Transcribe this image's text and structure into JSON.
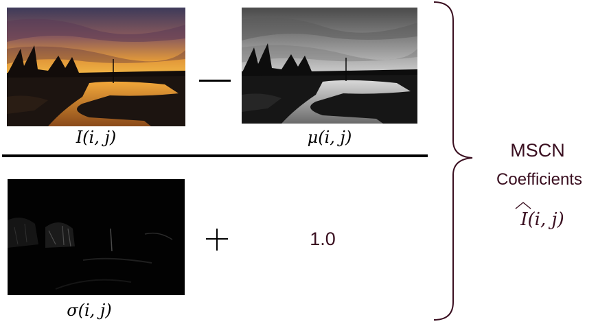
{
  "images": {
    "original": {
      "description_icon": "sunset-river-photo-color",
      "label": "I(i, j)"
    },
    "local_mean": {
      "description_icon": "sunset-river-photo-grayscale",
      "label": "μ(i, j)"
    },
    "local_std": {
      "description_icon": "sunset-river-photo-dark-std",
      "label": "σ(i, j)"
    }
  },
  "operators": {
    "minus": "minus-sign",
    "plus": "plus-sign",
    "constant": "1.0"
  },
  "result": {
    "title": "MSCN",
    "subtitle": "Coefficients",
    "symbol": "I(i, j)"
  },
  "colors": {
    "accent_text": "#3a0f20",
    "brace": "#3a0f20",
    "ink": "#000000"
  }
}
